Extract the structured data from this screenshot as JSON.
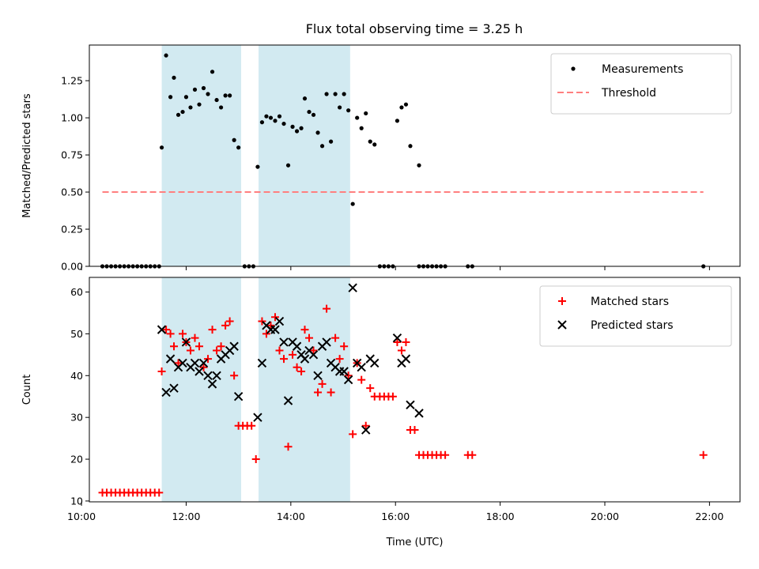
{
  "title": "Flux total observing time = 3.25 h",
  "chart_data": [
    {
      "type": "scatter",
      "ylabel": "Matched/Predicted stars",
      "xlim": [
        "10:09",
        "22:35"
      ],
      "ylim": [
        0,
        1.49
      ],
      "yticks": [
        "0.00",
        "0.25",
        "0.50",
        "0.75",
        "1.00",
        "1.25"
      ],
      "shaded_intervals": [
        [
          "11:32",
          "13:03"
        ],
        [
          "13:23",
          "15:08"
        ]
      ],
      "shade_color": "#add8e6",
      "legend": {
        "placement": "top-right",
        "entries": [
          {
            "label": "Measurements",
            "marker": "dot",
            "color": "#000000"
          },
          {
            "label": "Threshold",
            "marker": "dashed-line",
            "color": "#ff7f7f"
          }
        ]
      },
      "series": [
        {
          "name": "Measurements",
          "color": "#000000",
          "points": [
            [
              "10:24",
              0
            ],
            [
              "10:29",
              0
            ],
            [
              "10:34",
              0
            ],
            [
              "10:39",
              0
            ],
            [
              "10:44",
              0
            ],
            [
              "10:49",
              0
            ],
            [
              "10:54",
              0
            ],
            [
              "10:59",
              0
            ],
            [
              "11:04",
              0
            ],
            [
              "11:09",
              0
            ],
            [
              "11:14",
              0
            ],
            [
              "11:19",
              0
            ],
            [
              "11:24",
              0
            ],
            [
              "11:29",
              0
            ],
            [
              "11:32",
              0.8
            ],
            [
              "11:37",
              1.42
            ],
            [
              "11:42",
              1.14
            ],
            [
              "11:46",
              1.27
            ],
            [
              "11:51",
              1.02
            ],
            [
              "11:56",
              1.04
            ],
            [
              "12:00",
              1.14
            ],
            [
              "12:05",
              1.07
            ],
            [
              "12:10",
              1.19
            ],
            [
              "12:15",
              1.09
            ],
            [
              "12:20",
              1.2
            ],
            [
              "12:25",
              1.16
            ],
            [
              "12:30",
              1.31
            ],
            [
              "12:35",
              1.12
            ],
            [
              "12:40",
              1.07
            ],
            [
              "12:45",
              1.15
            ],
            [
              "12:50",
              1.15
            ],
            [
              "12:55",
              0.85
            ],
            [
              "13:00",
              0.8
            ],
            [
              "13:07",
              0
            ],
            [
              "13:12",
              0
            ],
            [
              "13:17",
              0
            ],
            [
              "13:22",
              0.67
            ],
            [
              "13:27",
              0.97
            ],
            [
              "13:32",
              1.01
            ],
            [
              "13:37",
              1.0
            ],
            [
              "13:42",
              0.98
            ],
            [
              "13:47",
              1.01
            ],
            [
              "13:52",
              0.96
            ],
            [
              "13:57",
              0.68
            ],
            [
              "14:02",
              0.94
            ],
            [
              "14:07",
              0.91
            ],
            [
              "14:12",
              0.93
            ],
            [
              "14:16",
              1.13
            ],
            [
              "14:21",
              1.04
            ],
            [
              "14:26",
              1.02
            ],
            [
              "14:31",
              0.9
            ],
            [
              "14:36",
              0.81
            ],
            [
              "14:41",
              1.16
            ],
            [
              "14:46",
              0.84
            ],
            [
              "14:51",
              1.16
            ],
            [
              "14:56",
              1.07
            ],
            [
              "15:01",
              1.16
            ],
            [
              "15:06",
              1.05
            ],
            [
              "15:11",
              0.42
            ],
            [
              "15:16",
              1.0
            ],
            [
              "15:21",
              0.93
            ],
            [
              "15:26",
              1.03
            ],
            [
              "15:31",
              0.84
            ],
            [
              "15:36",
              0.82
            ],
            [
              "15:42",
              0
            ],
            [
              "15:47",
              0
            ],
            [
              "15:52",
              0
            ],
            [
              "15:57",
              0
            ],
            [
              "16:02",
              0.98
            ],
            [
              "16:07",
              1.07
            ],
            [
              "16:12",
              1.09
            ],
            [
              "16:17",
              0.81
            ],
            [
              "16:27",
              0.68
            ],
            [
              "16:27",
              0
            ],
            [
              "16:32",
              0
            ],
            [
              "16:37",
              0
            ],
            [
              "16:42",
              0
            ],
            [
              "16:47",
              0
            ],
            [
              "16:52",
              0
            ],
            [
              "16:57",
              0
            ],
            [
              "17:23",
              0
            ],
            [
              "17:28",
              0
            ],
            [
              "21:53",
              0
            ]
          ]
        },
        {
          "name": "Threshold",
          "style": "dashed",
          "color": "#ff7f7f",
          "points": [
            [
              "10:24",
              0.5
            ],
            [
              "21:53",
              0.5
            ]
          ]
        }
      ]
    },
    {
      "type": "scatter",
      "xlabel": "Time (UTC)",
      "ylabel": "Count",
      "xlim": [
        "10:09",
        "22:35"
      ],
      "ylim": [
        9.8,
        63.5
      ],
      "yticks": [
        "10",
        "20",
        "30",
        "40",
        "50",
        "60"
      ],
      "xticks": [
        "10:00",
        "12:00",
        "14:00",
        "16:00",
        "18:00",
        "20:00",
        "22:00"
      ],
      "shaded_intervals": [
        [
          "11:32",
          "13:03"
        ],
        [
          "13:23",
          "15:08"
        ]
      ],
      "shade_color": "#add8e6",
      "legend": {
        "placement": "top-right",
        "entries": [
          {
            "label": "Matched stars",
            "marker": "plus",
            "color": "#ff0000"
          },
          {
            "label": "Predicted stars",
            "marker": "x",
            "color": "#000000"
          }
        ]
      },
      "series": [
        {
          "name": "Matched stars",
          "marker": "plus",
          "color": "#ff0000",
          "points": [
            [
              "10:24",
              12
            ],
            [
              "10:29",
              12
            ],
            [
              "10:34",
              12
            ],
            [
              "10:39",
              12
            ],
            [
              "10:44",
              12
            ],
            [
              "10:49",
              12
            ],
            [
              "10:54",
              12
            ],
            [
              "10:59",
              12
            ],
            [
              "11:04",
              12
            ],
            [
              "11:09",
              12
            ],
            [
              "11:14",
              12
            ],
            [
              "11:19",
              12
            ],
            [
              "11:24",
              12
            ],
            [
              "11:29",
              12
            ],
            [
              "11:32",
              41
            ],
            [
              "11:37",
              51
            ],
            [
              "11:42",
              50
            ],
            [
              "11:46",
              47
            ],
            [
              "11:51",
              43
            ],
            [
              "11:56",
              50
            ],
            [
              "12:00",
              48
            ],
            [
              "12:05",
              46
            ],
            [
              "12:10",
              49
            ],
            [
              "12:15",
              47
            ],
            [
              "12:20",
              42
            ],
            [
              "12:25",
              44
            ],
            [
              "12:30",
              51
            ],
            [
              "12:35",
              46
            ],
            [
              "12:40",
              47
            ],
            [
              "12:45",
              52
            ],
            [
              "12:50",
              53
            ],
            [
              "12:55",
              40
            ],
            [
              "13:00",
              28
            ],
            [
              "13:05",
              28
            ],
            [
              "13:10",
              28
            ],
            [
              "13:15",
              28
            ],
            [
              "13:20",
              20
            ],
            [
              "13:27",
              53
            ],
            [
              "13:32",
              50
            ],
            [
              "13:37",
              52
            ],
            [
              "13:42",
              54
            ],
            [
              "13:47",
              46
            ],
            [
              "13:52",
              44
            ],
            [
              "13:57",
              23
            ],
            [
              "14:02",
              45
            ],
            [
              "14:07",
              42
            ],
            [
              "14:12",
              41
            ],
            [
              "14:16",
              51
            ],
            [
              "14:21",
              49
            ],
            [
              "14:26",
              46
            ],
            [
              "14:31",
              36
            ],
            [
              "14:36",
              38
            ],
            [
              "14:41",
              56
            ],
            [
              "14:46",
              36
            ],
            [
              "14:51",
              49
            ],
            [
              "14:56",
              44
            ],
            [
              "15:01",
              47
            ],
            [
              "15:06",
              40
            ],
            [
              "15:11",
              26
            ],
            [
              "15:16",
              43
            ],
            [
              "15:21",
              39
            ],
            [
              "15:26",
              28
            ],
            [
              "15:31",
              37
            ],
            [
              "15:36",
              35
            ],
            [
              "15:42",
              35
            ],
            [
              "15:47",
              35
            ],
            [
              "15:52",
              35
            ],
            [
              "15:57",
              35
            ],
            [
              "16:02",
              48
            ],
            [
              "16:07",
              46
            ],
            [
              "16:12",
              48
            ],
            [
              "16:17",
              27
            ],
            [
              "16:22",
              27
            ],
            [
              "16:27",
              21
            ],
            [
              "16:32",
              21
            ],
            [
              "16:37",
              21
            ],
            [
              "16:42",
              21
            ],
            [
              "16:47",
              21
            ],
            [
              "16:52",
              21
            ],
            [
              "16:57",
              21
            ],
            [
              "17:23",
              21
            ],
            [
              "17:28",
              21
            ],
            [
              "21:53",
              21
            ]
          ]
        },
        {
          "name": "Predicted stars",
          "marker": "x",
          "color": "#000000",
          "points": [
            [
              "11:32",
              51
            ],
            [
              "11:37",
              36
            ],
            [
              "11:42",
              44
            ],
            [
              "11:46",
              37
            ],
            [
              "11:51",
              42
            ],
            [
              "11:56",
              43
            ],
            [
              "12:00",
              48
            ],
            [
              "12:05",
              42
            ],
            [
              "12:10",
              43
            ],
            [
              "12:15",
              41
            ],
            [
              "12:20",
              43
            ],
            [
              "12:25",
              40
            ],
            [
              "12:30",
              38
            ],
            [
              "12:35",
              40
            ],
            [
              "12:40",
              44
            ],
            [
              "12:45",
              45
            ],
            [
              "12:50",
              46
            ],
            [
              "12:55",
              47
            ],
            [
              "13:00",
              35
            ],
            [
              "13:22",
              30
            ],
            [
              "13:27",
              43
            ],
            [
              "13:32",
              52
            ],
            [
              "13:37",
              51
            ],
            [
              "13:42",
              51
            ],
            [
              "13:47",
              53
            ],
            [
              "13:52",
              48
            ],
            [
              "13:57",
              34
            ],
            [
              "14:02",
              48
            ],
            [
              "14:07",
              47
            ],
            [
              "14:12",
              45
            ],
            [
              "14:16",
              44
            ],
            [
              "14:21",
              46
            ],
            [
              "14:26",
              45
            ],
            [
              "14:31",
              40
            ],
            [
              "14:36",
              47
            ],
            [
              "14:41",
              48
            ],
            [
              "14:46",
              43
            ],
            [
              "14:51",
              42
            ],
            [
              "14:56",
              41
            ],
            [
              "15:01",
              41
            ],
            [
              "15:06",
              39
            ],
            [
              "15:11",
              61
            ],
            [
              "15:16",
              43
            ],
            [
              "15:21",
              42
            ],
            [
              "15:26",
              27
            ],
            [
              "15:31",
              44
            ],
            [
              "15:36",
              43
            ],
            [
              "16:02",
              49
            ],
            [
              "16:07",
              43
            ],
            [
              "16:12",
              44
            ],
            [
              "16:17",
              33
            ],
            [
              "16:27",
              31
            ]
          ]
        }
      ]
    }
  ]
}
